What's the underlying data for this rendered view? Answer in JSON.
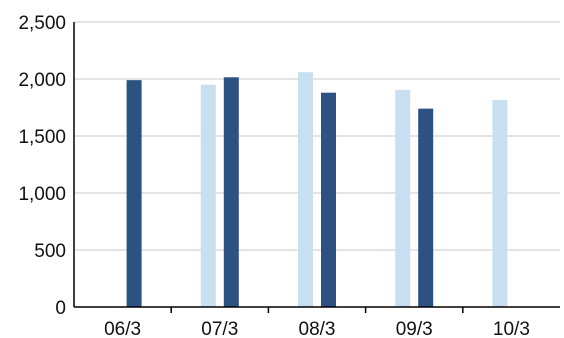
{
  "chart_data": {
    "type": "bar",
    "categories": [
      "06/3",
      "07/3",
      "08/3",
      "09/3",
      "10/3"
    ],
    "series": [
      {
        "values": [
          null,
          1950,
          2060,
          1905,
          1815
        ],
        "color": "#c7dff0"
      },
      {
        "values": [
          1990,
          2015,
          1880,
          1740,
          null
        ],
        "color": "#2b5280"
      }
    ],
    "yticks": [
      0,
      500,
      1000,
      1500,
      2000,
      2500
    ],
    "ytick_labels": [
      "0",
      "500",
      "1,000",
      "1,500",
      "2,000",
      "2,500"
    ],
    "ylim": [
      0,
      2500
    ],
    "grid": true,
    "title": "",
    "xlabel": "",
    "ylabel": ""
  }
}
